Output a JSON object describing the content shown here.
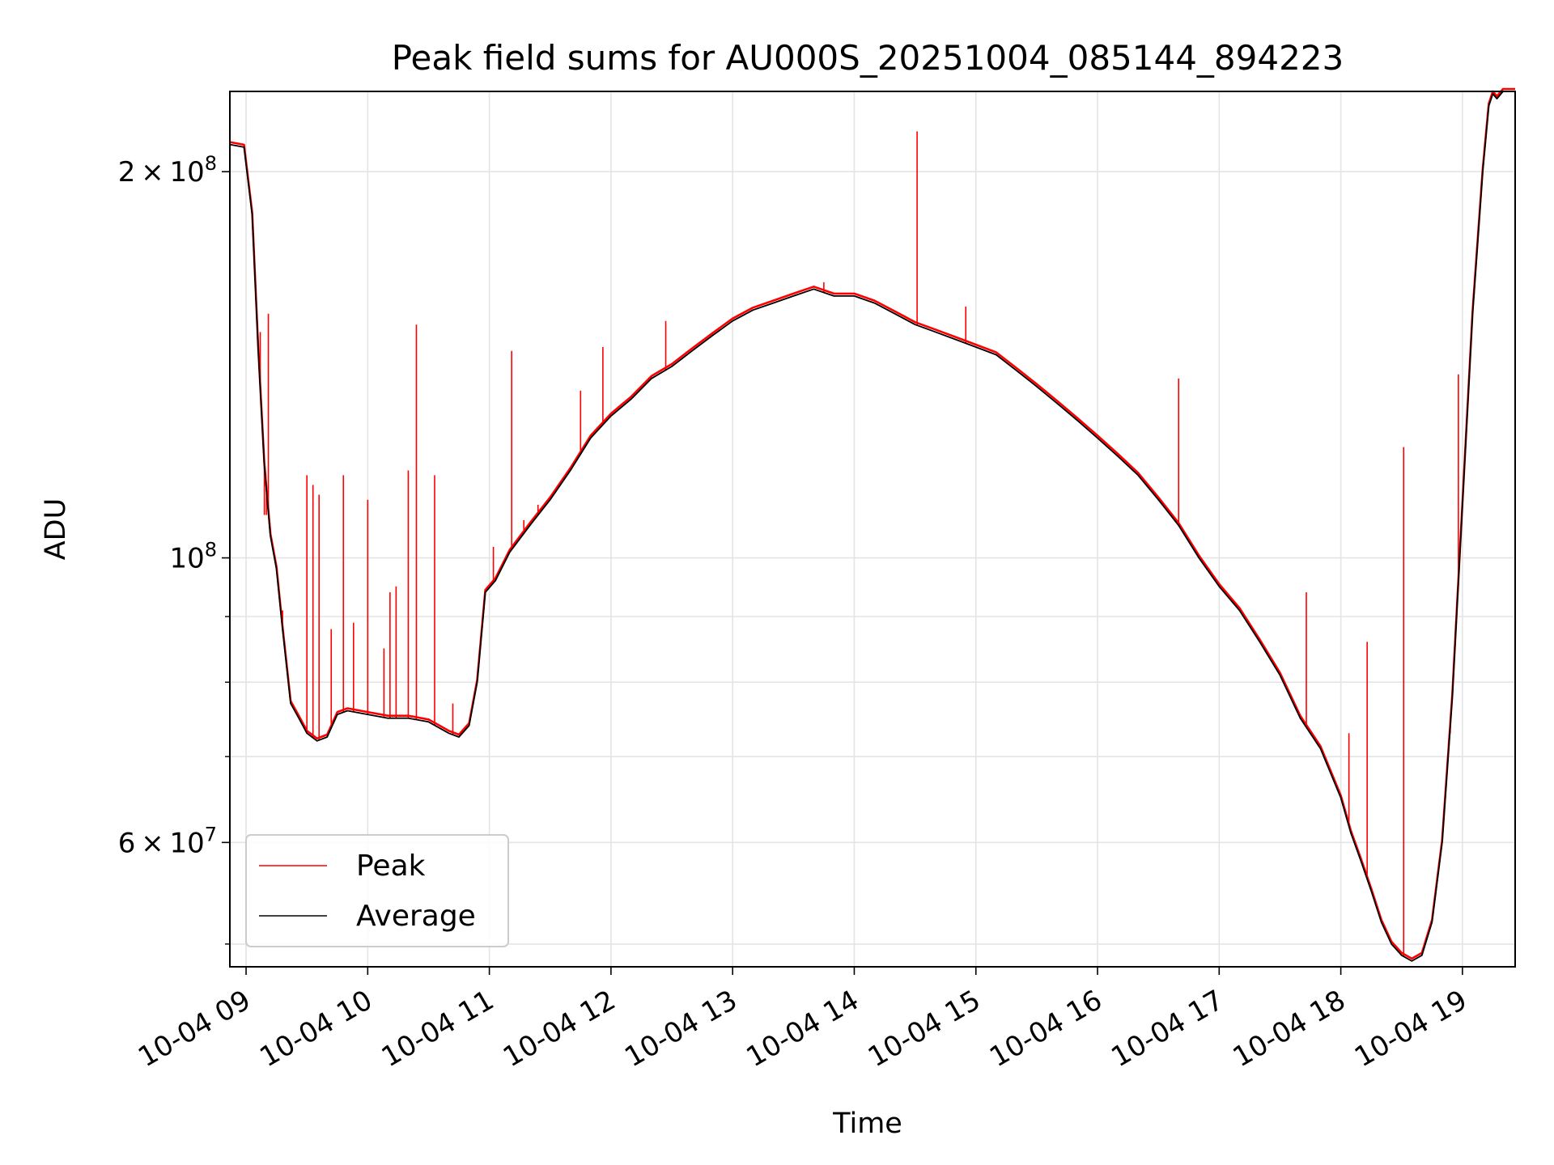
{
  "chart_data": {
    "type": "line",
    "title": "Peak field sums for AU000S_20251004_085144_894223",
    "xlabel": "Time",
    "ylabel": "ADU",
    "y_scale": "log",
    "xlim": [
      "10-04 08:52",
      "10-04 19:26"
    ],
    "ylim": [
      48000000,
      231000000
    ],
    "grid": true,
    "legend_position": "lower-left",
    "x_tick_labels": [
      "10-04 09",
      "10-04 10",
      "10-04 11",
      "10-04 12",
      "10-04 13",
      "10-04 14",
      "10-04 15",
      "10-04 16",
      "10-04 17",
      "10-04 18",
      "10-04 19"
    ],
    "y_major_ticks": [
      {
        "value": 200000000,
        "mantissa": "2",
        "exponent": "8"
      },
      {
        "value": 100000000,
        "mantissa": "",
        "exponent": "8"
      },
      {
        "value": 60000000,
        "mantissa": "6",
        "exponent": "7"
      }
    ],
    "y_minor_ticks": [
      90000000,
      80000000,
      70000000,
      50000000
    ],
    "series": [
      {
        "name": "Average",
        "color": "#000000",
        "x": [
          "08:52",
          "08:59",
          "09:03",
          "09:06",
          "09:09",
          "09:12",
          "09:15",
          "09:18",
          "09:22",
          "09:26",
          "09:30",
          "09:35",
          "09:40",
          "09:45",
          "09:50",
          "10:00",
          "10:10",
          "10:20",
          "10:30",
          "10:40",
          "10:45",
          "10:50",
          "10:54",
          "10:58",
          "11:03",
          "11:10",
          "11:20",
          "11:30",
          "11:40",
          "11:50",
          "12:00",
          "12:10",
          "12:20",
          "12:30",
          "12:40",
          "12:50",
          "13:00",
          "13:10",
          "13:20",
          "13:30",
          "13:40",
          "13:45",
          "13:50",
          "14:00",
          "14:10",
          "14:20",
          "14:30",
          "14:40",
          "14:50",
          "15:00",
          "15:10",
          "15:20",
          "15:30",
          "15:40",
          "15:50",
          "16:00",
          "16:10",
          "16:20",
          "16:30",
          "16:40",
          "16:50",
          "17:00",
          "17:10",
          "17:20",
          "17:30",
          "17:40",
          "17:50",
          "18:00",
          "18:05",
          "18:10",
          "18:15",
          "18:20",
          "18:25",
          "18:30",
          "18:35",
          "18:40",
          "18:45",
          "18:50",
          "18:55",
          "19:00",
          "19:05",
          "19:10",
          "19:13",
          "19:15",
          "19:17",
          "19:20",
          "19:26"
        ],
        "values": [
          210000000,
          209000000,
          185000000,
          145000000,
          118000000,
          104000000,
          98000000,
          88000000,
          77000000,
          75000000,
          73000000,
          72000000,
          72500000,
          75500000,
          76000000,
          75500000,
          75000000,
          75000000,
          74500000,
          73000000,
          72500000,
          74000000,
          80000000,
          94000000,
          96000000,
          101000000,
          106000000,
          111000000,
          117000000,
          124000000,
          129000000,
          133000000,
          138000000,
          141000000,
          145000000,
          149000000,
          153000000,
          156000000,
          158000000,
          160000000,
          162000000,
          161000000,
          160000000,
          160000000,
          158000000,
          155000000,
          152000000,
          150000000,
          148000000,
          146000000,
          144000000,
          140000000,
          136000000,
          132000000,
          128000000,
          124000000,
          120000000,
          116000000,
          111000000,
          106000000,
          100000000,
          95000000,
          91000000,
          86000000,
          81000000,
          75000000,
          71000000,
          65000000,
          61000000,
          58000000,
          55000000,
          52000000,
          50000000,
          49000000,
          48500000,
          49000000,
          52000000,
          60000000,
          78000000,
          110000000,
          155000000,
          200000000,
          225000000,
          230000000,
          228000000,
          231000000,
          231000000
        ]
      },
      {
        "name": "Peak",
        "color": "#ff0000",
        "spikes": [
          {
            "x": "09:04",
            "value": 170000000
          },
          {
            "x": "09:07",
            "value": 150000000
          },
          {
            "x": "09:09",
            "value": 108000000
          },
          {
            "x": "09:10",
            "value": 108000000
          },
          {
            "x": "09:11",
            "value": 155000000
          },
          {
            "x": "09:12",
            "value": 104000000
          },
          {
            "x": "09:16",
            "value": 95000000
          },
          {
            "x": "09:18",
            "value": 91000000
          },
          {
            "x": "09:30",
            "value": 116000000
          },
          {
            "x": "09:33",
            "value": 114000000
          },
          {
            "x": "09:36",
            "value": 112000000
          },
          {
            "x": "09:42",
            "value": 88000000
          },
          {
            "x": "09:48",
            "value": 116000000
          },
          {
            "x": "09:53",
            "value": 89000000
          },
          {
            "x": "10:00",
            "value": 111000000
          },
          {
            "x": "10:08",
            "value": 85000000
          },
          {
            "x": "10:11",
            "value": 94000000
          },
          {
            "x": "10:14",
            "value": 95000000
          },
          {
            "x": "10:20",
            "value": 117000000
          },
          {
            "x": "10:24",
            "value": 152000000
          },
          {
            "x": "10:33",
            "value": 116000000
          },
          {
            "x": "10:42",
            "value": 77000000
          },
          {
            "x": "11:02",
            "value": 102000000
          },
          {
            "x": "11:11",
            "value": 145000000
          },
          {
            "x": "11:17",
            "value": 107000000
          },
          {
            "x": "11:24",
            "value": 110000000
          },
          {
            "x": "11:45",
            "value": 135000000
          },
          {
            "x": "11:56",
            "value": 146000000
          },
          {
            "x": "12:27",
            "value": 153000000
          },
          {
            "x": "13:45",
            "value": 164000000
          },
          {
            "x": "14:31",
            "value": 215000000
          },
          {
            "x": "14:55",
            "value": 157000000
          },
          {
            "x": "16:40",
            "value": 138000000
          },
          {
            "x": "17:43",
            "value": 94000000
          },
          {
            "x": "18:04",
            "value": 73000000
          },
          {
            "x": "18:13",
            "value": 86000000
          },
          {
            "x": "18:31",
            "value": 122000000
          },
          {
            "x": "18:54",
            "value": 73000000
          },
          {
            "x": "18:58",
            "value": 139000000
          }
        ]
      }
    ]
  }
}
